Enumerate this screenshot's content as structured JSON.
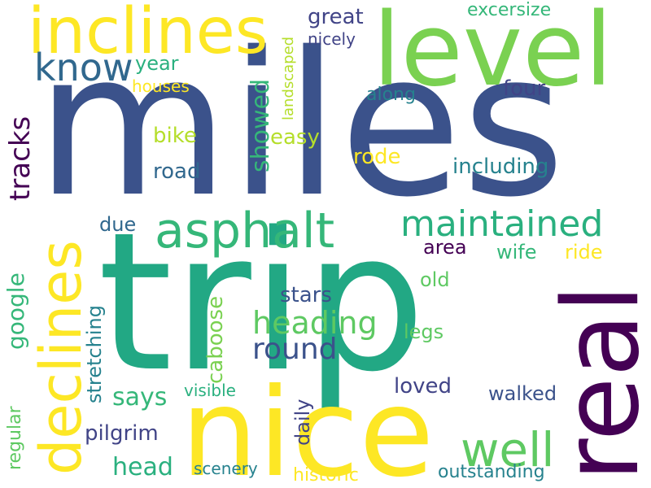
{
  "palette": {
    "navy": "#3b528b",
    "teal": "#21918c",
    "green": "#5ec962",
    "lime": "#7ad151",
    "yellow": "#fde725",
    "purple": "#440154",
    "blue": "#31688e",
    "sea": "#2ab07f",
    "indigo": "#414487",
    "chartreuse": "#b5de2b",
    "mint": "#35b779",
    "ocean": "#26828e",
    "darkgreen": "#22a884"
  },
  "words": [
    {
      "id": "miles",
      "text": "miles"
    },
    {
      "id": "trip",
      "text": "trip"
    },
    {
      "id": "level",
      "text": "level"
    },
    {
      "id": "inclines",
      "text": "inclines"
    },
    {
      "id": "nice",
      "text": "nice"
    },
    {
      "id": "real",
      "text": "real"
    },
    {
      "id": "declines",
      "text": "declines"
    },
    {
      "id": "asphalt",
      "text": "asphalt"
    },
    {
      "id": "maintained",
      "text": "maintained"
    },
    {
      "id": "know",
      "text": "know"
    },
    {
      "id": "well",
      "text": "well"
    },
    {
      "id": "heading",
      "text": "heading"
    },
    {
      "id": "round",
      "text": "round"
    },
    {
      "id": "tracks",
      "text": "tracks"
    },
    {
      "id": "showed",
      "text": "showed"
    },
    {
      "id": "google",
      "text": "google"
    },
    {
      "id": "caboose",
      "text": "caboose"
    },
    {
      "id": "says",
      "text": "says"
    },
    {
      "id": "head",
      "text": "head"
    },
    {
      "id": "pilgrim",
      "text": "pilgrim"
    },
    {
      "id": "great",
      "text": "great"
    },
    {
      "id": "excersize",
      "text": "excersize"
    },
    {
      "id": "nicely",
      "text": "nicely"
    },
    {
      "id": "year",
      "text": "year"
    },
    {
      "id": "houses",
      "text": "houses"
    },
    {
      "id": "landscaped",
      "text": "landscaped"
    },
    {
      "id": "four",
      "text": "four"
    },
    {
      "id": "along",
      "text": "along"
    },
    {
      "id": "bike",
      "text": "bike"
    },
    {
      "id": "easy",
      "text": "easy"
    },
    {
      "id": "rode",
      "text": "rode"
    },
    {
      "id": "road",
      "text": "road"
    },
    {
      "id": "including",
      "text": "including"
    },
    {
      "id": "due",
      "text": "due"
    },
    {
      "id": "area",
      "text": "area"
    },
    {
      "id": "wife",
      "text": "wife"
    },
    {
      "id": "ride",
      "text": "ride"
    },
    {
      "id": "old",
      "text": "old"
    },
    {
      "id": "stars",
      "text": "stars"
    },
    {
      "id": "legs",
      "text": "legs"
    },
    {
      "id": "stretching",
      "text": "stretching"
    },
    {
      "id": "regular",
      "text": "regular"
    },
    {
      "id": "daily",
      "text": "daily"
    },
    {
      "id": "loved",
      "text": "loved"
    },
    {
      "id": "visible",
      "text": "visible"
    },
    {
      "id": "walked",
      "text": "walked"
    },
    {
      "id": "scenery",
      "text": "scenery"
    },
    {
      "id": "historic",
      "text": "historic"
    },
    {
      "id": "outstanding",
      "text": "outstanding"
    }
  ]
}
